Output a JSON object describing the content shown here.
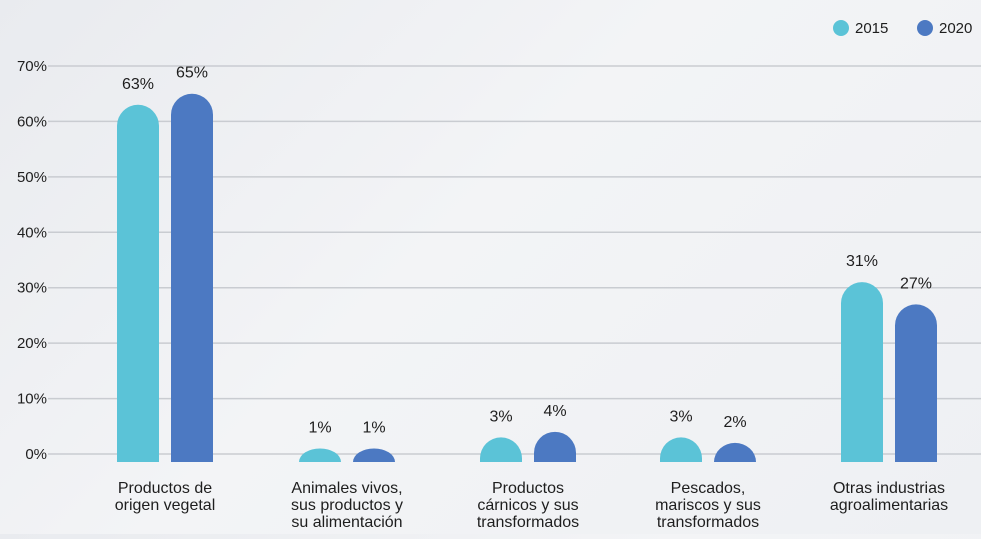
{
  "chart_data": {
    "type": "bar",
    "title": "",
    "xlabel": "",
    "ylabel": "",
    "categories": [
      [
        "Productos de",
        "origen vegetal"
      ],
      [
        "Animales vivos,",
        "sus productos y",
        "su alimentación"
      ],
      [
        "Productos",
        "cárnicos y sus",
        "transformados"
      ],
      [
        "Pescados,",
        "mariscos y sus",
        "transformados"
      ],
      [
        "Otras industrias",
        "agroalimentarias"
      ]
    ],
    "series": [
      {
        "name": "2015",
        "color": "#5bc3d7",
        "values": [
          63,
          1,
          3,
          3,
          31
        ],
        "labels": [
          "63%",
          "1%",
          "3%",
          "3%",
          "31%"
        ]
      },
      {
        "name": "2020",
        "color": "#4c79c2",
        "values": [
          65,
          1,
          4,
          2,
          27
        ],
        "labels": [
          "65%",
          "1%",
          "4%",
          "2%",
          "27%"
        ]
      }
    ],
    "ylim": [
      0,
      70
    ],
    "yticks": [
      0,
      10,
      20,
      30,
      40,
      50,
      60,
      70
    ],
    "ytick_labels": [
      "0%",
      "10%",
      "20%",
      "30%",
      "40%",
      "50%",
      "60%",
      "70%"
    ],
    "grid": true,
    "legend": "top-right"
  }
}
